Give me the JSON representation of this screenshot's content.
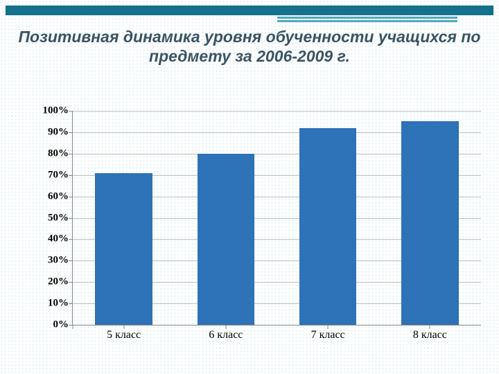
{
  "background": {
    "pattern_color": "#dff2f6",
    "base_color": "#ffffff"
  },
  "header": {
    "band_color": "#14708b",
    "accent_color": "#4fa9c4"
  },
  "title": {
    "text": "Позитивная динамика уровня обученности учащихся по предмету за 2006-2009 г.",
    "fontsize": 23,
    "color": "#3b5362",
    "italic": true,
    "bold": true
  },
  "chart": {
    "type": "bar",
    "categories": [
      "5 класс",
      "6 класс",
      "7 класс",
      "8 класс"
    ],
    "values": [
      71,
      80,
      92,
      95
    ],
    "bar_color": "#2e72b8",
    "bar_width_pct": 14,
    "ylim": [
      0,
      100
    ],
    "yticks": [
      0,
      10,
      20,
      30,
      40,
      50,
      60,
      70,
      80,
      90,
      100
    ],
    "ytick_labels": [
      "0%",
      "10%",
      "20%",
      "30%",
      "40%",
      "50%",
      "60%",
      "70%",
      "80%",
      "90%",
      "100%"
    ],
    "grid_color": "#bfbfbf",
    "axis_color": "#888888",
    "ytick_fontsize": 15,
    "ytick_bold": true,
    "xtick_fontsize": 16,
    "xtick_color": "#000000",
    "ytick_color": "#000000"
  }
}
